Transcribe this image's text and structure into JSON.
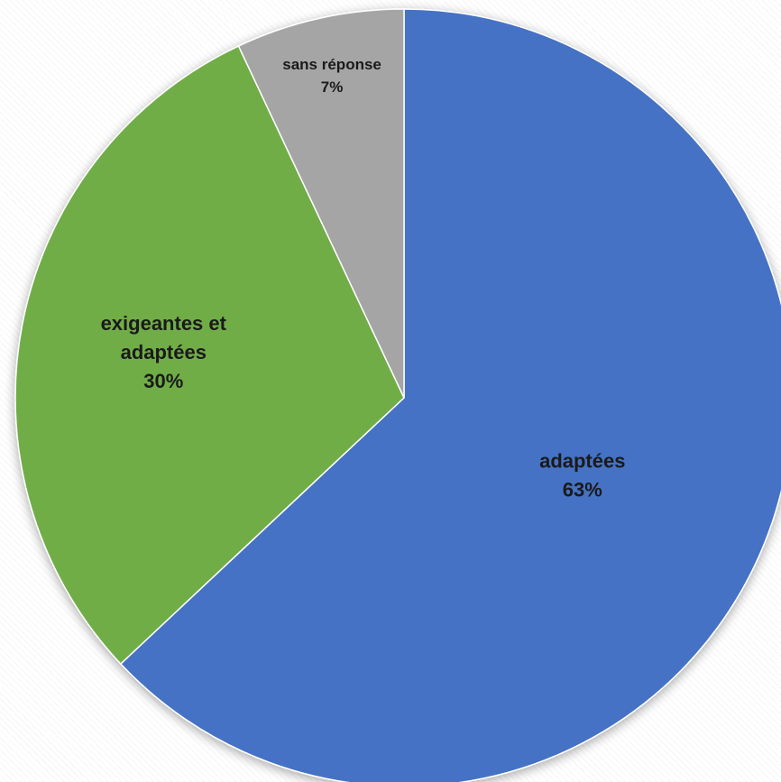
{
  "chart_data": {
    "type": "pie",
    "title": "",
    "slices": [
      {
        "label": "adaptées",
        "value": 63,
        "value_label": "63%",
        "color": "#4472C4"
      },
      {
        "label": "exigeantes et adaptées",
        "value": 30,
        "value_label": "30%",
        "color": "#70AD47"
      },
      {
        "label": "sans réponse",
        "value": 7,
        "value_label": "7%",
        "color": "#A5A5A5"
      }
    ],
    "start_angle": "12 o'clock",
    "direction": "clockwise",
    "legend": "none",
    "data_labels": "inside slices"
  }
}
